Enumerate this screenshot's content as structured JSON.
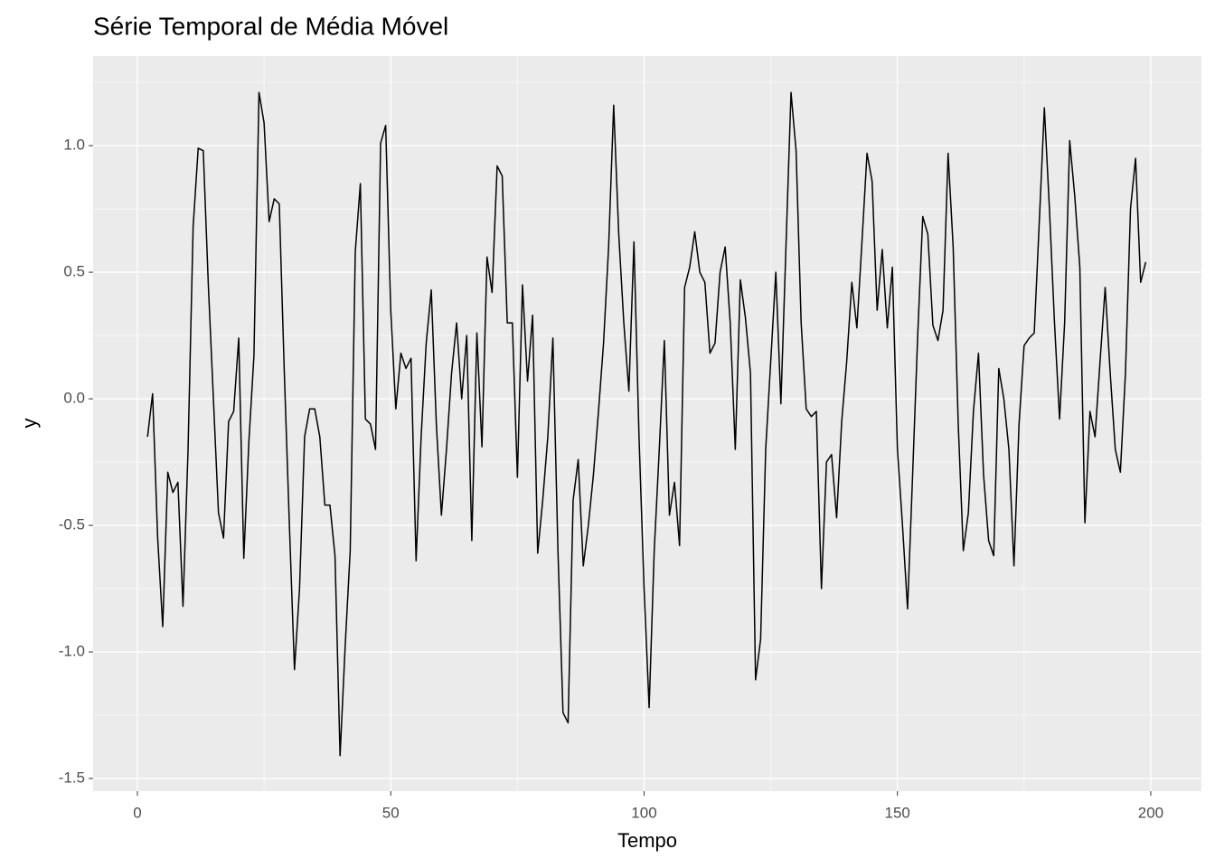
{
  "chart_data": {
    "type": "line",
    "title": "Série Temporal de Média Móvel",
    "xlabel": "Tempo",
    "ylabel": "y",
    "x": [
      2,
      3,
      4,
      5,
      6,
      7,
      8,
      9,
      10,
      11,
      12,
      13,
      14,
      15,
      16,
      17,
      18,
      19,
      20,
      21,
      22,
      23,
      24,
      25,
      26,
      27,
      28,
      29,
      30,
      31,
      32,
      33,
      34,
      35,
      36,
      37,
      38,
      39,
      40,
      41,
      42,
      43,
      44,
      45,
      46,
      47,
      48,
      49,
      50,
      51,
      52,
      53,
      54,
      55,
      56,
      57,
      58,
      59,
      60,
      61,
      62,
      63,
      64,
      65,
      66,
      67,
      68,
      69,
      70,
      71,
      72,
      73,
      74,
      75,
      76,
      77,
      78,
      79,
      80,
      81,
      82,
      83,
      84,
      85,
      86,
      87,
      88,
      89,
      90,
      91,
      92,
      93,
      94,
      95,
      96,
      97,
      98,
      99,
      100,
      101,
      102,
      103,
      104,
      105,
      106,
      107,
      108,
      109,
      110,
      111,
      112,
      113,
      114,
      115,
      116,
      117,
      118,
      119,
      120,
      121,
      122,
      123,
      124,
      125,
      126,
      127,
      128,
      129,
      130,
      131,
      132,
      133,
      134,
      135,
      136,
      137,
      138,
      139,
      140,
      141,
      142,
      143,
      144,
      145,
      146,
      147,
      148,
      149,
      150,
      151,
      152,
      153,
      154,
      155,
      156,
      157,
      158,
      159,
      160,
      161,
      162,
      163,
      164,
      165,
      166,
      167,
      168,
      169,
      170,
      171,
      172,
      173,
      174,
      175,
      176,
      177,
      178,
      179,
      180,
      181,
      182,
      183,
      184,
      185,
      186,
      187,
      188,
      189,
      190,
      191,
      192,
      193,
      194,
      195,
      196,
      197,
      198,
      199
    ],
    "series": [
      {
        "color": "#000000",
        "values": [
          -0.15,
          0.02,
          -0.55,
          -0.9,
          -0.29,
          -0.37,
          -0.33,
          -0.82,
          -0.2,
          0.68,
          0.99,
          0.98,
          0.45,
          0.0,
          -0.45,
          -0.55,
          -0.09,
          -0.05,
          0.24,
          -0.63,
          -0.17,
          0.17,
          1.21,
          1.09,
          0.7,
          0.79,
          0.77,
          0.1,
          -0.5,
          -1.07,
          -0.75,
          -0.15,
          -0.04,
          -0.04,
          -0.15,
          -0.42,
          -0.42,
          -0.62,
          -1.41,
          -0.98,
          -0.6,
          0.58,
          0.85,
          -0.08,
          -0.1,
          -0.2,
          1.01,
          1.08,
          0.35,
          -0.04,
          0.18,
          0.12,
          0.16,
          -0.64,
          -0.15,
          0.22,
          0.43,
          -0.1,
          -0.46,
          -0.2,
          0.1,
          0.3,
          0.0,
          0.25,
          -0.56,
          0.26,
          -0.19,
          0.56,
          0.42,
          0.92,
          0.88,
          0.3,
          0.3,
          -0.31,
          0.45,
          0.07,
          0.33,
          -0.61,
          -0.4,
          -0.15,
          0.24,
          -0.6,
          -1.24,
          -1.28,
          -0.4,
          -0.24,
          -0.66,
          -0.5,
          -0.3,
          -0.05,
          0.22,
          0.6,
          1.16,
          0.65,
          0.3,
          0.03,
          0.62,
          -0.15,
          -0.75,
          -1.22,
          -0.6,
          -0.2,
          0.23,
          -0.46,
          -0.33,
          -0.58,
          0.44,
          0.52,
          0.66,
          0.5,
          0.46,
          0.18,
          0.22,
          0.5,
          0.6,
          0.3,
          -0.2,
          0.47,
          0.32,
          0.1,
          -1.11,
          -0.95,
          -0.2,
          0.15,
          0.5,
          -0.02,
          0.6,
          1.21,
          0.98,
          0.3,
          -0.04,
          -0.07,
          -0.05,
          -0.75,
          -0.25,
          -0.22,
          -0.47,
          -0.09,
          0.15,
          0.46,
          0.28,
          0.62,
          0.97,
          0.86,
          0.35,
          0.59,
          0.28,
          0.52,
          -0.2,
          -0.5,
          -0.83,
          -0.3,
          0.25,
          0.72,
          0.65,
          0.29,
          0.23,
          0.35,
          0.97,
          0.6,
          -0.1,
          -0.6,
          -0.45,
          -0.05,
          0.18,
          -0.3,
          -0.56,
          -0.62,
          0.12,
          0.0,
          -0.2,
          -0.66,
          -0.1,
          0.21,
          0.24,
          0.26,
          0.7,
          1.15,
          0.75,
          0.3,
          -0.08,
          0.3,
          1.02,
          0.8,
          0.52,
          -0.49,
          -0.05,
          -0.15,
          0.15,
          0.44,
          0.1,
          -0.2,
          -0.29,
          0.1,
          0.75,
          0.95,
          0.46,
          0.54
        ]
      }
    ],
    "xlim": [
      -8.74,
      210.0
    ],
    "xticks": [
      0,
      50,
      100,
      150,
      200
    ],
    "ylim": [
      -1.55,
      1.354
    ],
    "yticks": [
      {
        "value": -1.5,
        "label": "-1.5"
      },
      {
        "value": -1.0,
        "label": "-1.0"
      },
      -0.5,
      {
        "value": 0.0,
        "label": "0.0"
      },
      0.5,
      {
        "value": 1.0,
        "label": "1.0"
      }
    ],
    "grid": true
  }
}
